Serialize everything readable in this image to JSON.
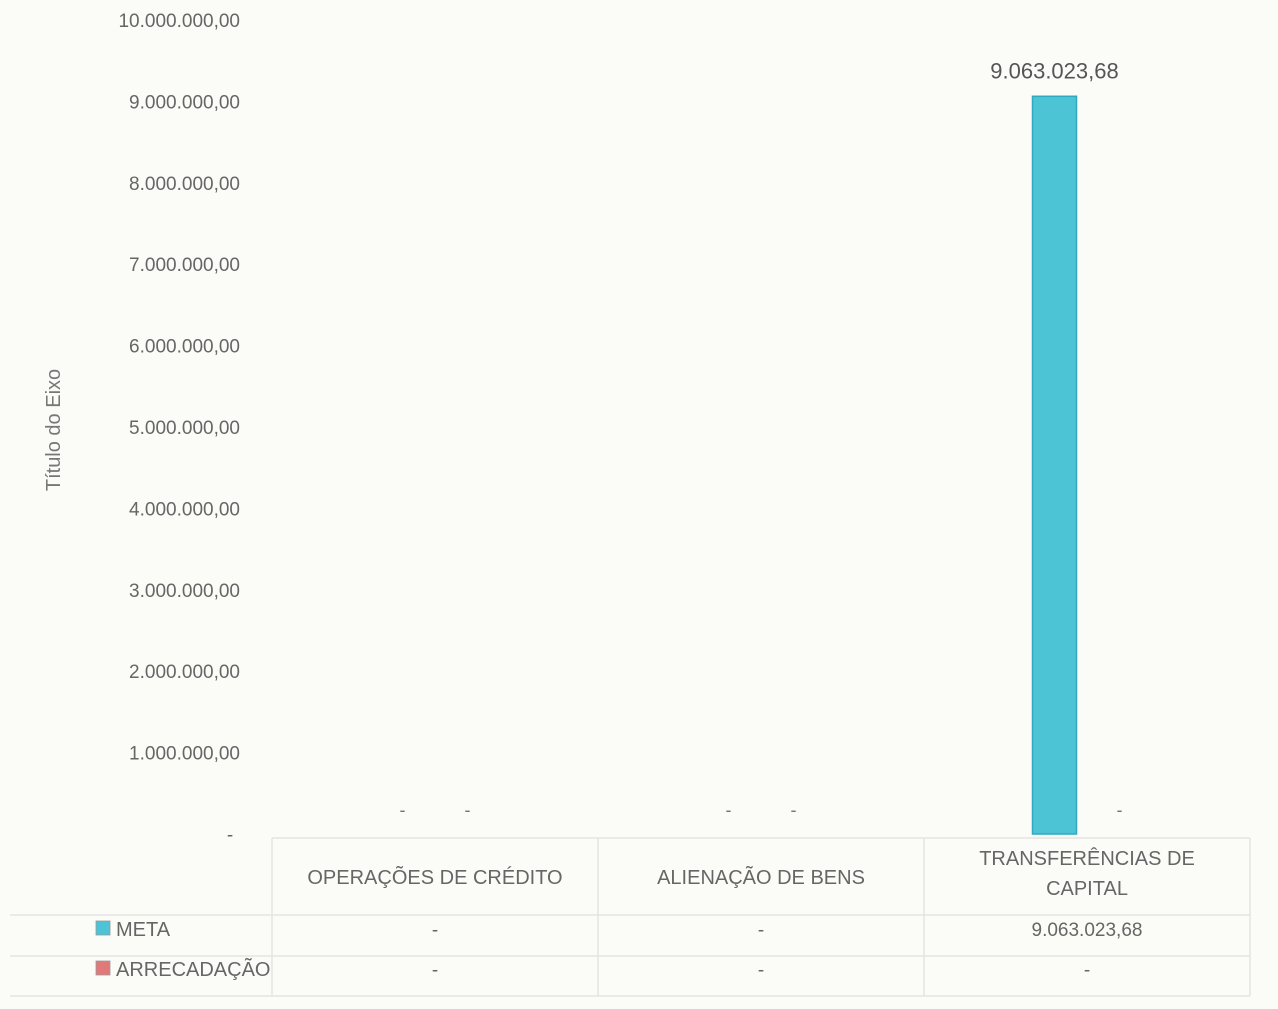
{
  "chart_data": {
    "type": "bar",
    "ylabel": "Título do Eixo",
    "ylim": [
      0,
      10000000
    ],
    "y_ticks": [
      {
        "value": 0,
        "label": "-"
      },
      {
        "value": 1000000,
        "label": "1.000.000,00"
      },
      {
        "value": 2000000,
        "label": "2.000.000,00"
      },
      {
        "value": 3000000,
        "label": "3.000.000,00"
      },
      {
        "value": 4000000,
        "label": "4.000.000,00"
      },
      {
        "value": 5000000,
        "label": "5.000.000,00"
      },
      {
        "value": 6000000,
        "label": "6.000.000,00"
      },
      {
        "value": 7000000,
        "label": "7.000.000,00"
      },
      {
        "value": 8000000,
        "label": "8.000.000,00"
      },
      {
        "value": 9000000,
        "label": "9.000.000,00"
      },
      {
        "value": 10000000,
        "label": "10.000.000,00"
      }
    ],
    "categories": [
      {
        "lines": [
          "OPERAÇÕES DE CRÉDITO"
        ]
      },
      {
        "lines": [
          "ALIENAÇÃO DE BENS"
        ]
      },
      {
        "lines": [
          "TRANSFERÊNCIAS DE",
          "CAPITAL"
        ]
      }
    ],
    "series": [
      {
        "name": "META",
        "color": "#4dc3d6",
        "values": [
          0,
          0,
          9063023.68
        ],
        "value_labels": [
          "-",
          "-",
          "9.063.023,68"
        ]
      },
      {
        "name": "ARRECADAÇÃO",
        "color": "#e07a7a",
        "values": [
          0,
          0,
          0
        ],
        "value_labels": [
          "-",
          "-",
          "-"
        ]
      }
    ],
    "legend_position": "data-table-left",
    "grid": false,
    "data_table": true
  }
}
